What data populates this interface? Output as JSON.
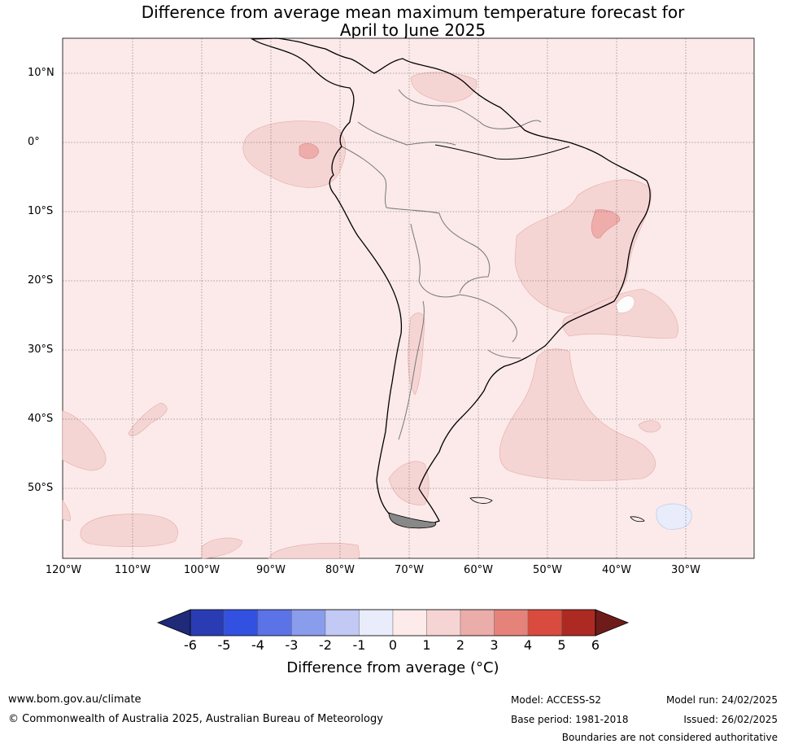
{
  "title": {
    "line1": "Difference from average mean maximum temperature forecast for",
    "line2": "April to June 2025"
  },
  "axes": {
    "lat_labels": [
      "10°N",
      "0°",
      "10°S",
      "20°S",
      "30°S",
      "40°S",
      "50°S"
    ],
    "lon_labels": [
      "120°W",
      "110°W",
      "100°W",
      "90°W",
      "80°W",
      "70°W",
      "60°W",
      "50°W",
      "40°W",
      "30°W"
    ]
  },
  "colorbar": {
    "title": "Difference from average (°C)",
    "labels": [
      "-6",
      "-5",
      "-4",
      "-3",
      "-2",
      "-1",
      "0",
      "1",
      "2",
      "3",
      "4",
      "5",
      "6"
    ],
    "colors": [
      "#1f2a78",
      "#2a3cb3",
      "#3251e0",
      "#5b73e6",
      "#8a9cec",
      "#c1c9f4",
      "#e9ecfb",
      "#fcebea",
      "#f6d4d3",
      "#ebada9",
      "#e5837b",
      "#d94b3f",
      "#ad2a23",
      "#6e1c1a"
    ]
  },
  "footer": {
    "website": "www.bom.gov.au/climate",
    "copyright": "© Commonwealth of Australia 2025, Australian Bureau of Meteorology",
    "model": "Model: ACCESS-S2",
    "base_period": "Base period: 1981-2018",
    "model_run": "Model run: 24/02/2025",
    "issued": "Issued: 26/02/2025",
    "disclaimer": "Boundaries are not considered authoritative"
  }
}
